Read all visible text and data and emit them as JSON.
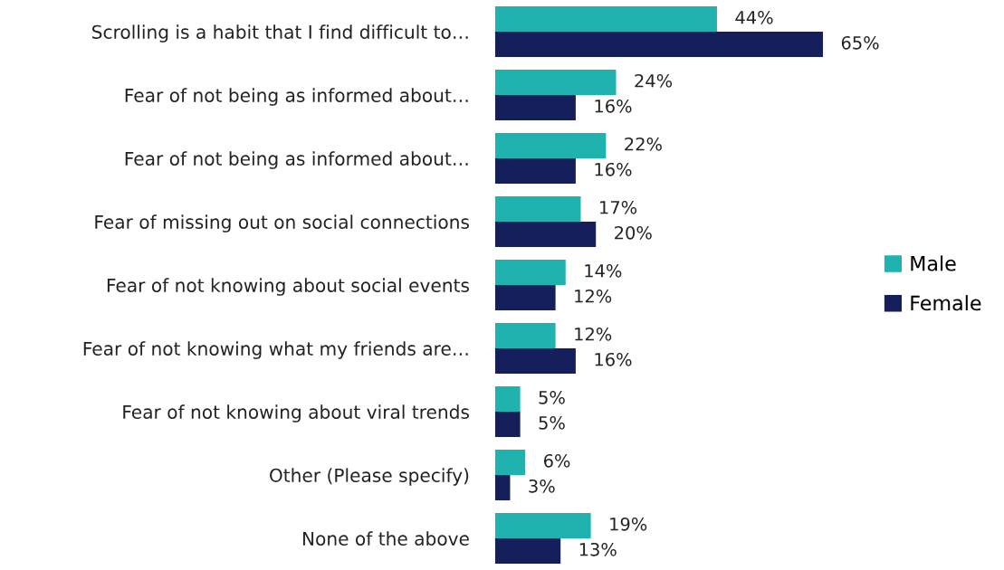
{
  "chart_data": {
    "type": "bar",
    "orientation": "horizontal",
    "tick_labels": "y",
    "legend": "right",
    "grid": false,
    "categories": [
      "Scrolling is a habit that I find difficult to…",
      "Fear of not being as informed about…",
      "Fear of not being as informed about…",
      "Fear of missing out on social connections",
      "Fear of not knowing about social events",
      "Fear of not knowing what my friends are…",
      "Fear of not knowing about viral trends",
      "Other (Please specify)",
      "None of the above"
    ],
    "series": [
      {
        "name": "Male",
        "color": "#20b2ae",
        "values": [
          44,
          24,
          22,
          17,
          14,
          12,
          5,
          6,
          19
        ],
        "value_labels": [
          "44%",
          "24%",
          "22%",
          "17%",
          "14%",
          "12%",
          "5%",
          "6%",
          "19%"
        ]
      },
      {
        "name": "Female",
        "color": "#151f5c",
        "values": [
          65,
          16,
          16,
          20,
          12,
          16,
          5,
          3,
          13
        ],
        "value_labels": [
          "65%",
          "16%",
          "16%",
          "20%",
          "12%",
          "16%",
          "5%",
          "3%",
          "13%"
        ]
      }
    ]
  }
}
